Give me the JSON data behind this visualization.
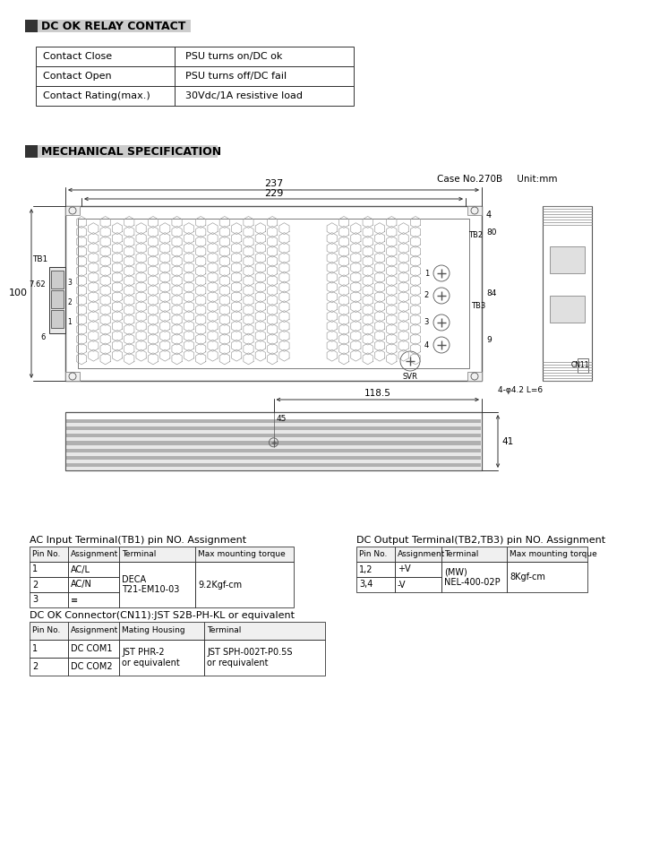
{
  "bg_color": "#ffffff",
  "section1_header": "DC OK RELAY CONTACT",
  "relay_rows": [
    [
      "Contact Close",
      "PSU turns on/DC ok"
    ],
    [
      "Contact Open",
      "PSU turns off/DC fail"
    ],
    [
      "Contact Rating(max.)",
      "30Vdc/1A resistive load"
    ]
  ],
  "section2_header": "MECHANICAL SPECIFICATION",
  "case_info": "Case No.270B     Unit:mm",
  "dim_237": "237",
  "dim_229": "229",
  "dim_4": "4",
  "dim_100": "100",
  "dim_7_62": "7.62",
  "dim_6": "6",
  "dim_84": "84",
  "dim_9": "9",
  "dim_80": "80",
  "dim_118_5": "118.5",
  "dim_45": "45",
  "dim_41": "41",
  "label_TB1": "TB1",
  "label_TB2": "TB2",
  "label_TB3": "TB3",
  "label_SVR": "SVR",
  "label_CN11": "CN11",
  "label_holes": "4-φ4.2 L=6",
  "ac_title": "AC Input Terminal(TB1) pin NO. Assignment",
  "ac_headers": [
    "Pin No.",
    "Assignment",
    "Terminal",
    "Max mounting torque"
  ],
  "ac_rows": [
    [
      "1",
      "AC/L"
    ],
    [
      "2",
      "AC/N"
    ],
    [
      "3",
      "≡"
    ]
  ],
  "ac_terminal": "DECA\nT21-EM10-03",
  "ac_torque": "9.2Kgf-cm",
  "dc_title": "DC Output Terminal(TB2,TB3) pin NO. Assignment",
  "dc_headers": [
    "Pin No.",
    "Assignment",
    "Terminal",
    "Max mounting torque"
  ],
  "dc_rows": [
    [
      "1,2",
      "+V"
    ],
    [
      "3,4",
      "-V"
    ]
  ],
  "dc_terminal": "(MW)\nNEL-400-02P",
  "dc_torque": "8Kgf-cm",
  "cn_title": "DC OK Connector(CN11):JST S2B-PH-KL or equivalent",
  "cn_headers": [
    "Pin No.",
    "Assignment",
    "Mating Housing",
    "Terminal"
  ],
  "cn_rows": [
    [
      "1",
      "DC COM1"
    ],
    [
      "2",
      "DC COM2"
    ]
  ],
  "cn_housing": "JST PHR-2\nor equivalent",
  "cn_terminal": "JST SPH-002T-P0.5S\nor requivalent"
}
